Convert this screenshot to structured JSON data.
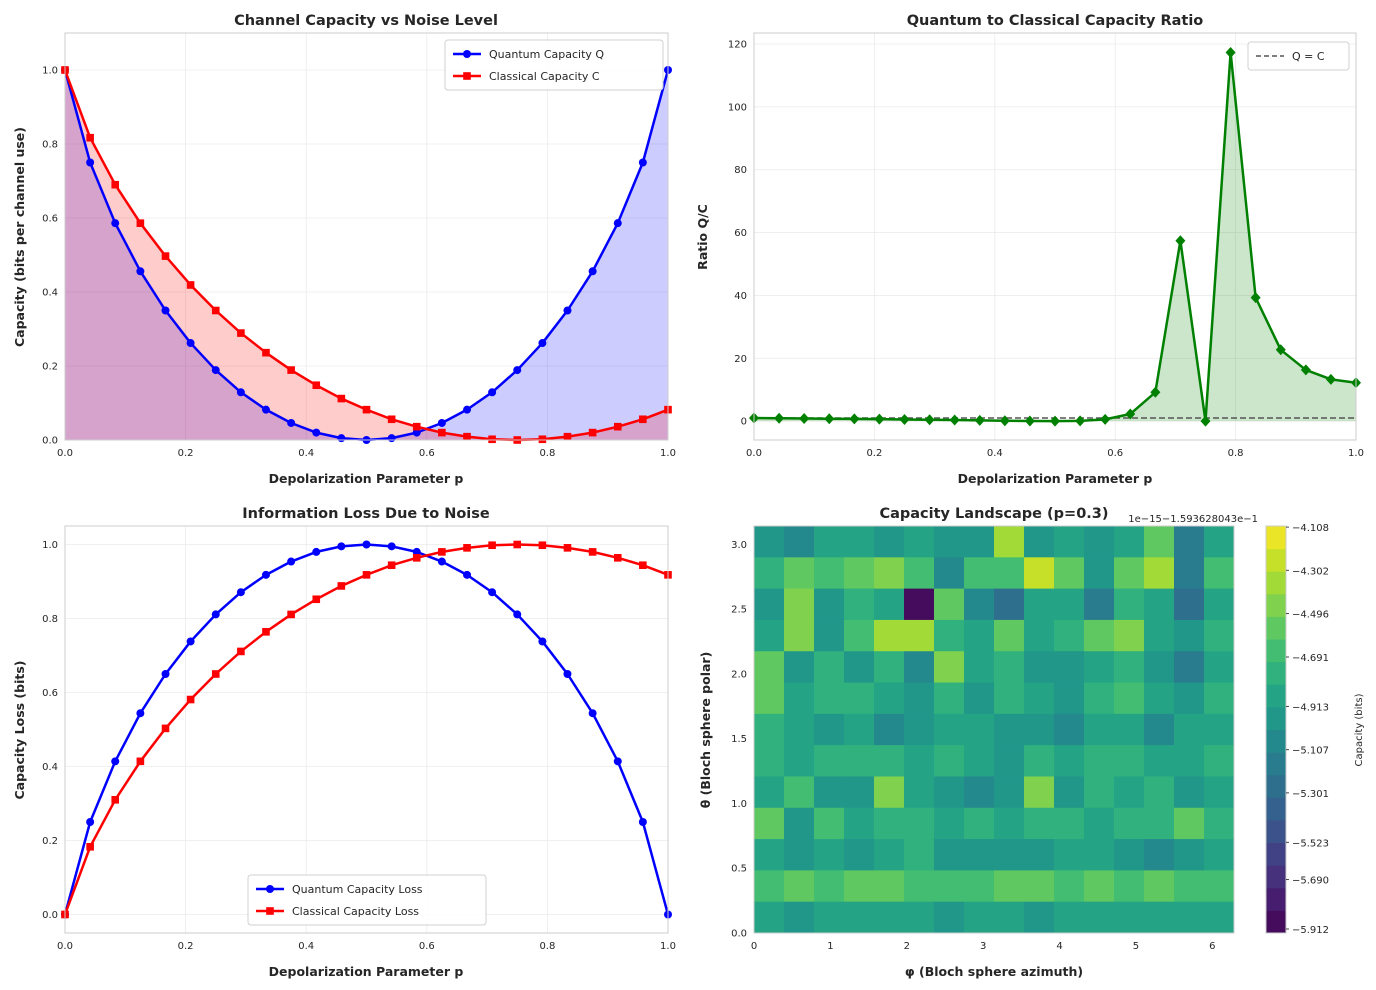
{
  "chart_data": [
    {
      "type": "line",
      "title": "Channel Capacity vs Noise Level",
      "xlabel": "Depolarization Parameter p",
      "ylabel": "Capacity (bits per channel use)",
      "xlim": [
        0,
        1
      ],
      "ylim": [
        0,
        1.1
      ],
      "xticks": [
        "0.0",
        "0.2",
        "0.4",
        "0.6",
        "0.8",
        "1.0"
      ],
      "yticks": [
        "0.0",
        "0.2",
        "0.4",
        "0.6",
        "0.8",
        "1.0"
      ],
      "grid": true,
      "legend": "top-right",
      "x": [
        0,
        0.0417,
        0.0833,
        0.125,
        0.1667,
        0.2083,
        0.25,
        0.2917,
        0.3333,
        0.375,
        0.4167,
        0.4583,
        0.5,
        0.5417,
        0.5833,
        0.625,
        0.6667,
        0.7083,
        0.75,
        0.7917,
        0.8333,
        0.875,
        0.9167,
        0.9583,
        1
      ],
      "series": [
        {
          "name": "Quantum Capacity Q",
          "color": "#0000ff",
          "marker": "circle",
          "fill": true,
          "values": [
            1,
            0.75,
            0.586,
            0.456,
            0.35,
            0.262,
            0.189,
            0.129,
            0.082,
            0.046,
            0.02,
            0.005,
            0,
            0.005,
            0.02,
            0.046,
            0.082,
            0.129,
            0.189,
            0.262,
            0.35,
            0.456,
            0.586,
            0.75,
            1
          ]
        },
        {
          "name": "Classical Capacity C",
          "color": "#ff0000",
          "marker": "square",
          "fill": true,
          "values": [
            1,
            0.817,
            0.69,
            0.586,
            0.497,
            0.419,
            0.35,
            0.289,
            0.236,
            0.189,
            0.148,
            0.112,
            0.082,
            0.056,
            0.036,
            0.02,
            0.009,
            0.002,
            0,
            0.002,
            0.009,
            0.02,
            0.036,
            0.056,
            0.082
          ]
        }
      ]
    },
    {
      "type": "line",
      "title": "Quantum to Classical Capacity Ratio",
      "xlabel": "Depolarization Parameter p",
      "ylabel": "Ratio Q/C",
      "xlim": [
        0,
        1
      ],
      "ylim": [
        -6,
        123.5
      ],
      "xticks": [
        "0.0",
        "0.2",
        "0.4",
        "0.6",
        "0.8",
        "1.0"
      ],
      "yticks": [
        "0",
        "20",
        "40",
        "60",
        "80",
        "100",
        "120"
      ],
      "grid": true,
      "legend": "top-right",
      "x": [
        0,
        0.0417,
        0.0833,
        0.125,
        0.1667,
        0.2083,
        0.25,
        0.2917,
        0.3333,
        0.375,
        0.4167,
        0.4583,
        0.5,
        0.5417,
        0.5833,
        0.625,
        0.6667,
        0.7083,
        0.75,
        0.7917,
        0.8333,
        0.875,
        0.9167,
        0.9583,
        1
      ],
      "series": [
        {
          "color": "#008000",
          "marker": "diamond",
          "fill": true,
          "values": [
            1,
            0.918,
            0.849,
            0.779,
            0.705,
            0.625,
            0.539,
            0.446,
            0.346,
            0.242,
            0.136,
            0.045,
            0,
            0.089,
            0.56,
            2.27,
            9.18,
            57.4,
            0,
            117.3,
            39.3,
            22.7,
            16.3,
            13.3,
            12.2
          ]
        }
      ],
      "reference_line": {
        "name": "Q = C",
        "y": 1,
        "color": "#555555",
        "style": "dashed"
      }
    },
    {
      "type": "line",
      "title": "Information Loss Due to Noise",
      "xlabel": "Depolarization Parameter p",
      "ylabel": "Capacity Loss (bits)",
      "xlim": [
        0,
        1
      ],
      "ylim": [
        -0.05,
        1.05
      ],
      "xticks": [
        "0.0",
        "0.2",
        "0.4",
        "0.6",
        "0.8",
        "1.0"
      ],
      "yticks": [
        "0.0",
        "0.2",
        "0.4",
        "0.6",
        "0.8",
        "1.0"
      ],
      "grid": true,
      "legend": "bottom-center",
      "x": [
        0,
        0.0417,
        0.0833,
        0.125,
        0.1667,
        0.2083,
        0.25,
        0.2917,
        0.3333,
        0.375,
        0.4167,
        0.4583,
        0.5,
        0.5417,
        0.5833,
        0.625,
        0.6667,
        0.7083,
        0.75,
        0.7917,
        0.8333,
        0.875,
        0.9167,
        0.9583,
        1
      ],
      "series": [
        {
          "name": "Quantum Capacity Loss",
          "color": "#0000ff",
          "marker": "circle",
          "values": [
            0,
            0.25,
            0.414,
            0.544,
            0.65,
            0.738,
            0.811,
            0.871,
            0.918,
            0.954,
            0.98,
            0.995,
            1,
            0.995,
            0.98,
            0.954,
            0.918,
            0.871,
            0.811,
            0.738,
            0.65,
            0.544,
            0.414,
            0.25,
            0
          ]
        },
        {
          "name": "Classical Capacity Loss",
          "color": "#ff0000",
          "marker": "square",
          "values": [
            0,
            0.183,
            0.31,
            0.414,
            0.503,
            0.581,
            0.65,
            0.711,
            0.764,
            0.811,
            0.852,
            0.888,
            0.918,
            0.944,
            0.964,
            0.98,
            0.991,
            0.998,
            1,
            0.998,
            0.991,
            0.98,
            0.964,
            0.944,
            0.918
          ]
        }
      ]
    },
    {
      "type": "heatmap",
      "title": "Capacity Landscape (p=0.3)",
      "xlabel": "φ (Bloch sphere azimuth)",
      "ylabel": "θ (Bloch sphere polar)",
      "xlim": [
        0,
        6.2832
      ],
      "ylim": [
        0,
        3.1416
      ],
      "xticks": [
        "0",
        "1",
        "2",
        "3",
        "4",
        "5",
        "6"
      ],
      "yticks": [
        "0.0",
        "0.5",
        "1.0",
        "1.5",
        "2.0",
        "2.5",
        "3.0"
      ],
      "colorbar_label": "Capacity (bits)",
      "colorbar_offset": "1e−15−1.593628043e−1",
      "colorbar_range": [
        -5.93,
        -4.103
      ],
      "colorbar_ticks": [
        "−4.108",
        "−4.302",
        "−4.496",
        "−4.691",
        "−4.913",
        "−5.107",
        "−5.301",
        "−5.523",
        "−5.690",
        "−5.912"
      ],
      "colorbar_tick_values": [
        -4.108,
        -4.302,
        -4.496,
        -4.691,
        -4.913,
        -5.107,
        -5.301,
        -5.523,
        -5.69,
        -5.912
      ],
      "colormap": "viridis",
      "grid_values_top_to_bottom": [
        [
          -5.0,
          -5.1,
          -4.9,
          -4.9,
          -5.0,
          -4.9,
          -5.0,
          -5.0,
          -4.4,
          -5.0,
          -4.9,
          -5.0,
          -4.9,
          -4.6,
          -5.2,
          -4.9
        ],
        [
          -4.8,
          -4.6,
          -4.7,
          -4.6,
          -4.5,
          -4.7,
          -5.1,
          -4.7,
          -4.7,
          -4.3,
          -4.6,
          -5.0,
          -4.6,
          -4.4,
          -5.2,
          -4.7
        ],
        [
          -5.0,
          -4.5,
          -5.0,
          -4.8,
          -4.9,
          -5.9,
          -4.6,
          -5.1,
          -5.3,
          -4.9,
          -4.9,
          -5.2,
          -4.8,
          -4.9,
          -5.3,
          -4.9
        ],
        [
          -4.9,
          -4.5,
          -5.0,
          -4.7,
          -4.4,
          -4.4,
          -4.8,
          -4.9,
          -4.6,
          -4.9,
          -4.8,
          -4.6,
          -4.5,
          -4.9,
          -5.0,
          -4.8
        ],
        [
          -4.6,
          -5.0,
          -4.8,
          -5.0,
          -4.8,
          -5.1,
          -4.5,
          -4.9,
          -4.8,
          -5.0,
          -5.0,
          -4.9,
          -4.8,
          -5.0,
          -5.2,
          -4.9
        ],
        [
          -4.6,
          -4.9,
          -4.8,
          -4.8,
          -4.9,
          -5.0,
          -4.8,
          -5.0,
          -4.8,
          -4.9,
          -5.0,
          -4.8,
          -4.7,
          -4.9,
          -5.0,
          -4.8
        ],
        [
          -4.8,
          -4.9,
          -5.0,
          -4.9,
          -5.1,
          -5.0,
          -4.9,
          -4.9,
          -5.0,
          -5.0,
          -5.1,
          -4.9,
          -4.9,
          -5.1,
          -4.9,
          -4.9
        ],
        [
          -4.8,
          -4.9,
          -4.8,
          -4.8,
          -4.8,
          -4.9,
          -4.8,
          -4.9,
          -5.0,
          -4.8,
          -4.9,
          -4.8,
          -4.8,
          -4.9,
          -4.9,
          -4.8
        ],
        [
          -4.9,
          -4.7,
          -5.0,
          -5.0,
          -4.5,
          -4.9,
          -5.0,
          -5.1,
          -5.0,
          -4.5,
          -5.0,
          -4.8,
          -4.9,
          -4.8,
          -5.0,
          -4.9
        ],
        [
          -4.6,
          -5.0,
          -4.7,
          -4.9,
          -4.8,
          -4.8,
          -4.9,
          -4.8,
          -4.9,
          -4.8,
          -4.8,
          -4.9,
          -4.8,
          -4.8,
          -4.6,
          -4.8
        ],
        [
          -4.9,
          -5.0,
          -4.9,
          -5.0,
          -4.9,
          -4.8,
          -5.0,
          -5.0,
          -5.0,
          -5.0,
          -4.9,
          -4.9,
          -5.0,
          -5.1,
          -5.0,
          -4.9
        ],
        [
          -4.7,
          -4.6,
          -4.7,
          -4.6,
          -4.6,
          -4.7,
          -4.7,
          -4.7,
          -4.6,
          -4.6,
          -4.7,
          -4.6,
          -4.7,
          -4.6,
          -4.7,
          -4.7
        ],
        [
          -4.9,
          -5.0,
          -4.9,
          -4.9,
          -4.9,
          -4.9,
          -5.0,
          -4.9,
          -4.9,
          -5.0,
          -4.9,
          -4.9,
          -4.9,
          -4.9,
          -4.9,
          -4.9
        ]
      ]
    }
  ]
}
